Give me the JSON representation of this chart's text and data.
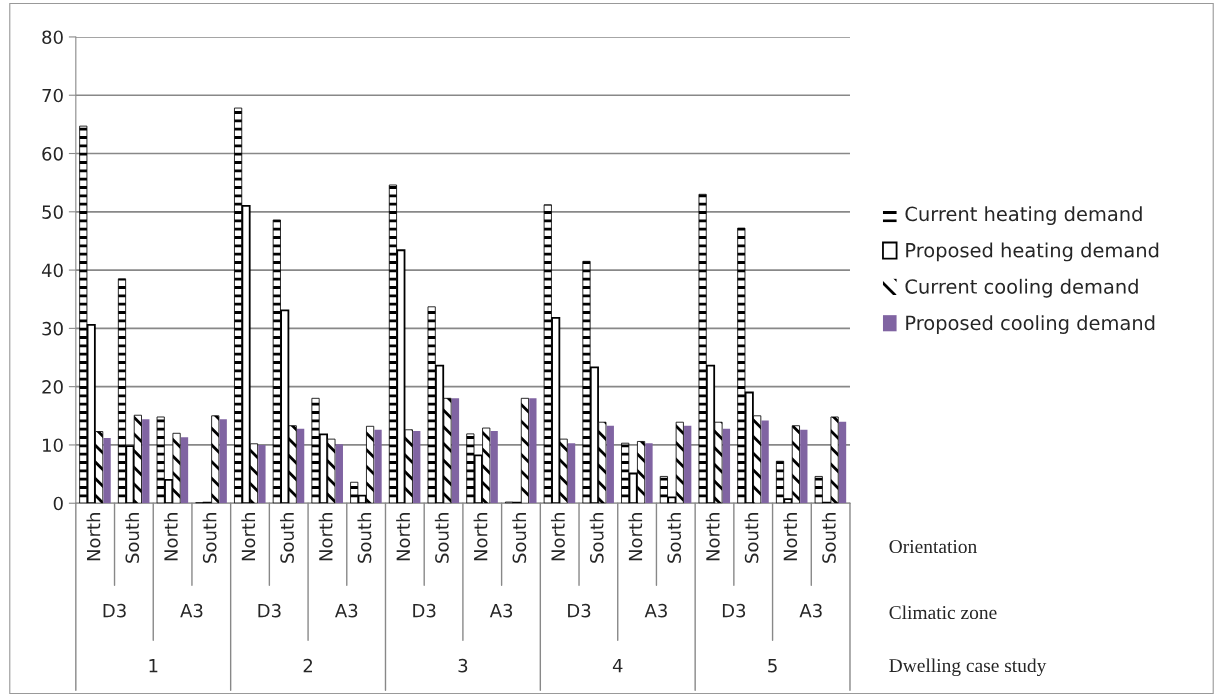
{
  "chart_data": {
    "type": "bar",
    "categories": [
      "North",
      "South",
      "North",
      "South",
      "North",
      "South",
      "North",
      "South",
      "North",
      "South",
      "North",
      "South",
      "North",
      "South",
      "North",
      "South",
      "North",
      "South",
      "North",
      "South"
    ],
    "series": [
      {
        "name": "Current heating demand",
        "color": "#000000",
        "values": [
          64.7,
          38.5,
          14.8,
          0.1,
          67.8,
          48.6,
          18.0,
          3.6,
          54.6,
          33.7,
          11.9,
          0.2,
          51.2,
          41.5,
          10.3,
          4.6,
          53.0,
          47.2,
          7.2,
          4.6
        ]
      },
      {
        "name": "Proposed heating demand",
        "color": "#000000",
        "values": [
          30.6,
          9.8,
          4.0,
          0.1,
          51.0,
          33.1,
          11.8,
          1.3,
          43.4,
          23.6,
          8.2,
          0.1,
          31.8,
          23.3,
          5.1,
          1.0,
          23.6,
          19.0,
          0.7,
          0.1
        ]
      },
      {
        "name": "Current cooling demand",
        "color": "#000000",
        "values": [
          12.3,
          15.1,
          12.0,
          15.0,
          10.2,
          13.3,
          11.0,
          13.2,
          12.6,
          18.0,
          12.9,
          18.0,
          11.0,
          13.9,
          10.6,
          13.9,
          13.9,
          15.0,
          13.3,
          14.8
        ]
      },
      {
        "name": "Proposed cooling demand",
        "color": "#8064a2",
        "values": [
          11.2,
          14.4,
          11.3,
          14.4,
          10.0,
          12.8,
          10.1,
          12.6,
          12.4,
          18.0,
          12.4,
          18.0,
          10.3,
          13.3,
          10.3,
          13.3,
          12.8,
          14.2,
          12.6,
          14.0
        ]
      }
    ],
    "annotations": [
      "D3",
      "A3",
      "D3",
      "A3",
      "D3",
      "A3",
      "D3",
      "A3",
      "D3",
      "A3",
      "1",
      "2",
      "3",
      "4",
      "5",
      "Orientation",
      "Climatic zone",
      "Dwelling case study"
    ],
    "ylim": [
      0,
      80
    ],
    "yticks": [
      0,
      10,
      20,
      30,
      40,
      50,
      60,
      70,
      80
    ],
    "grid": "y",
    "legend": "right"
  }
}
